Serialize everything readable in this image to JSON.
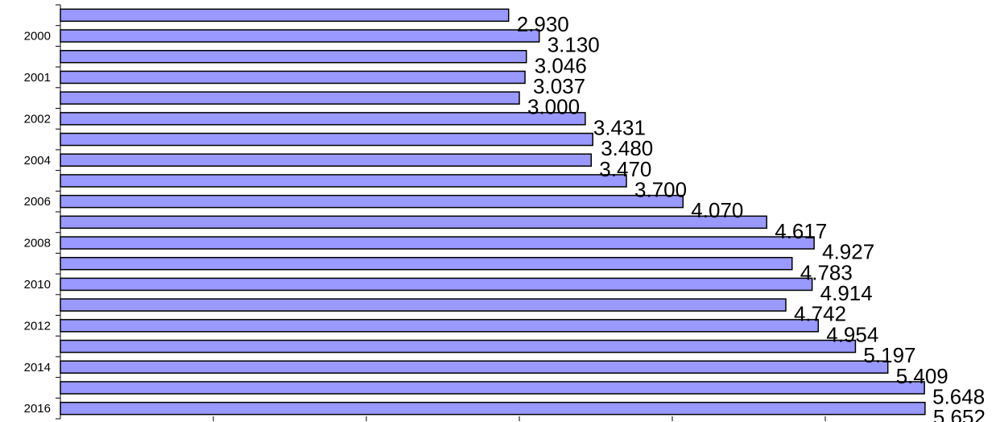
{
  "chart_data": {
    "type": "bar",
    "orientation": "horizontal",
    "categories": [
      "",
      "2000",
      "",
      "2001",
      "",
      "2002",
      "",
      "2004",
      "",
      "2006",
      "",
      "2008",
      "",
      "2010",
      "",
      "2012",
      "",
      "2014",
      "",
      "2016"
    ],
    "values": [
      2.93,
      3.13,
      3.046,
      3.037,
      3.0,
      3.431,
      3.48,
      3.47,
      3.7,
      4.07,
      4.617,
      4.927,
      4.783,
      4.914,
      4.742,
      4.954,
      5.197,
      5.409,
      5.648,
      5.652
    ],
    "value_labels": [
      "2.930",
      "3.130",
      "3.046",
      "3.037",
      "3.000",
      "3.431",
      "3.480",
      "3.470",
      "3.700",
      "4.070",
      "4.617",
      "4.927",
      "4.783",
      "4.914",
      "4.742",
      "4.954",
      "5.197",
      "5.409",
      "5.648",
      "5.652"
    ],
    "xlim": [
      0,
      6
    ],
    "grid": false,
    "legend": "none",
    "bar_color": "#9999ff",
    "bar_edge_color": "#000000"
  }
}
